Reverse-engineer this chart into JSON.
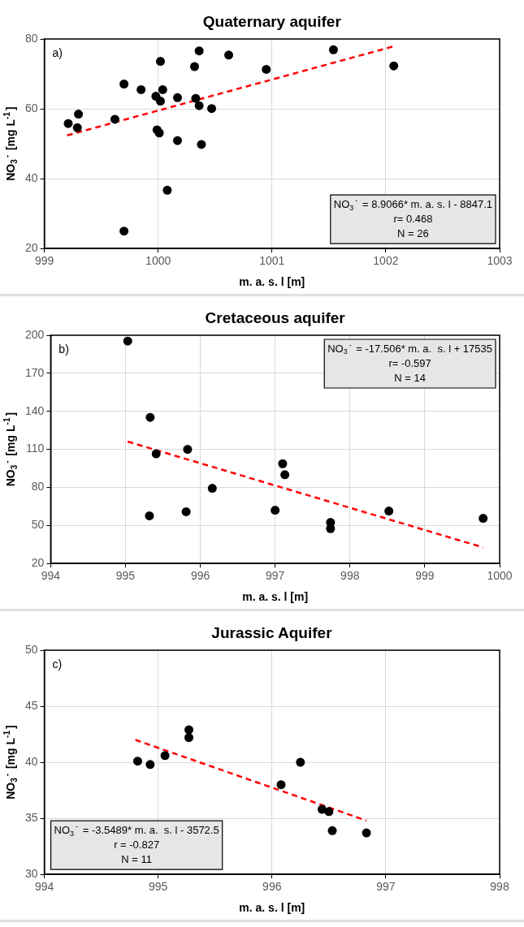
{
  "chart_data": [
    {
      "type": "scatter",
      "title": "Quaternary aquifer",
      "xlabel": "m. a. s. l [m]",
      "ylabel": "NO$_{3}$$^{-}$ [mg L$^{-1}$]",
      "xlim": [
        999,
        1003
      ],
      "xticks": [
        999,
        1000,
        1001,
        1002,
        1003
      ],
      "ylim": [
        20,
        80
      ],
      "yticks": [
        20,
        40,
        60,
        80
      ],
      "grid": true,
      "legend": false,
      "marker": "circle",
      "series": [
        {
          "color": "#000000",
          "x": [
            999.21,
            999.29,
            999.3,
            999.62,
            999.7,
            999.7,
            999.85,
            999.98,
            1000.02,
            1000.04,
            1000.02,
            999.99,
            1000.01,
            1000.08,
            1000.17,
            1000.17,
            1000.32,
            1000.33,
            1000.36,
            1000.36,
            1000.38,
            1000.47,
            1000.62,
            1000.95,
            1001.54,
            1002.07
          ],
          "values": [
            55.8,
            54.6,
            58.5,
            57.0,
            67.1,
            25.0,
            65.5,
            63.6,
            73.6,
            65.5,
            62.2,
            54.0,
            53.1,
            36.7,
            63.2,
            50.9,
            72.1,
            63.0,
            76.6,
            60.9,
            49.8,
            60.1,
            75.4,
            71.3,
            76.9,
            72.3
          ]
        },
        {
          "type": "line",
          "color": "#ff0000",
          "line_style": "dashed",
          "marker": "none",
          "x": [
            999.2,
            1002.07
          ],
          "values": [
            52.4,
            77.9
          ]
        }
      ],
      "annotations": [
        "a)",
        "NO$_{3}$$^{-}$ = 8.9066* m. a. s. l - 8847.1",
        "r= 0.468",
        "N = 26"
      ]
    },
    {
      "type": "scatter",
      "title": "Cretaceous aquifer",
      "xlabel": "m. a. s. l [m]",
      "ylabel": "NO$_{3}$$^{-}$ [mg L$^{-1}$]",
      "xlim": [
        994,
        1000
      ],
      "xticks": [
        994,
        995,
        996,
        997,
        998,
        999,
        1000
      ],
      "ylim": [
        20,
        200
      ],
      "yticks": [
        20,
        50,
        80,
        110,
        140,
        170,
        200
      ],
      "grid": true,
      "legend": false,
      "marker": "circle",
      "series": [
        {
          "color": "#000000",
          "x": [
            995.03,
            995.33,
            995.41,
            995.83,
            996.16,
            995.32,
            995.81,
            997.0,
            997.1,
            997.13,
            997.74,
            997.74,
            998.52,
            999.78
          ],
          "values": [
            195.4,
            135.2,
            106.5,
            110.0,
            79.3,
            57.6,
            60.8,
            62.0,
            98.7,
            90.0,
            52.4,
            47.5,
            61.4,
            55.6
          ]
        },
        {
          "type": "line",
          "color": "#ff0000",
          "line_style": "dashed",
          "marker": "none",
          "x": [
            995.03,
            999.78
          ],
          "values": [
            116.1,
            32.7
          ]
        }
      ],
      "annotations": [
        "b)",
        "NO$_{3}$$^{-}$ = -17.506* m. a.  s. l + 17535",
        "r= -0.597",
        "N = 14"
      ]
    },
    {
      "type": "scatter",
      "title": "Jurassic Aquifer",
      "xlabel": "m. a. s. l [m]",
      "ylabel": "NO$_{3}$$^{-}$ [mg L$^{-1}$]",
      "xlim": [
        994,
        998
      ],
      "xticks": [
        994,
        995,
        996,
        997,
        998
      ],
      "ylim": [
        30,
        50
      ],
      "yticks": [
        30,
        35,
        40,
        45,
        50
      ],
      "grid": true,
      "legend": false,
      "marker": "circle",
      "series": [
        {
          "color": "#000000",
          "x": [
            994.82,
            994.93,
            995.06,
            995.27,
            995.27,
            996.08,
            996.25,
            996.44,
            996.5,
            996.53,
            996.83
          ],
          "values": [
            40.1,
            39.8,
            40.6,
            42.9,
            42.2,
            38.0,
            40.0,
            35.8,
            35.6,
            33.9,
            33.7
          ]
        },
        {
          "type": "line",
          "color": "#ff0000",
          "line_style": "dashed",
          "marker": "none",
          "x": [
            994.8,
            996.83
          ],
          "values": [
            42.0,
            34.8
          ]
        }
      ],
      "annotations": [
        "c)",
        "NO$_{3}$$^{-}$ = -3.5489* m. a.  s. l - 3572.5",
        "r = -0.827",
        "N = 11"
      ]
    }
  ]
}
